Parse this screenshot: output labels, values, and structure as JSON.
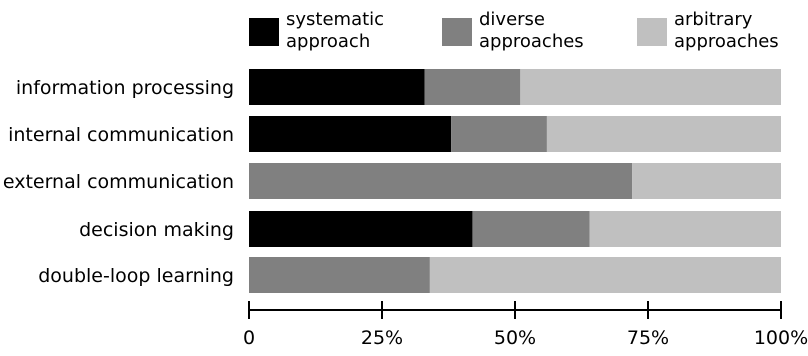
{
  "chart_data": {
    "type": "bar",
    "orientation": "horizontal",
    "stacked": true,
    "categories": [
      "information processing",
      "internal communication",
      "external communication",
      "decision making",
      "double-loop learning"
    ],
    "series": [
      {
        "name": "systematic approach",
        "name_lines": [
          "systematic",
          "approach"
        ],
        "color": "#000000",
        "values": [
          33,
          38,
          0,
          42,
          0
        ]
      },
      {
        "name": "diverse approaches",
        "name_lines": [
          "diverse",
          "approaches"
        ],
        "color": "#808080",
        "values": [
          18,
          18,
          72,
          22,
          34
        ]
      },
      {
        "name": "arbitrary approaches",
        "name_lines": [
          "arbitrary",
          "approaches"
        ],
        "color": "#c0c0c0",
        "values": [
          49,
          44,
          28,
          36,
          66
        ]
      }
    ],
    "x_ticks": [
      "0",
      "25%",
      "50%",
      "75%",
      "100%"
    ],
    "x_tick_values": [
      0,
      25,
      50,
      75,
      100
    ],
    "xlim": [
      0,
      100
    ],
    "grid": false,
    "legend_position": "top"
  }
}
